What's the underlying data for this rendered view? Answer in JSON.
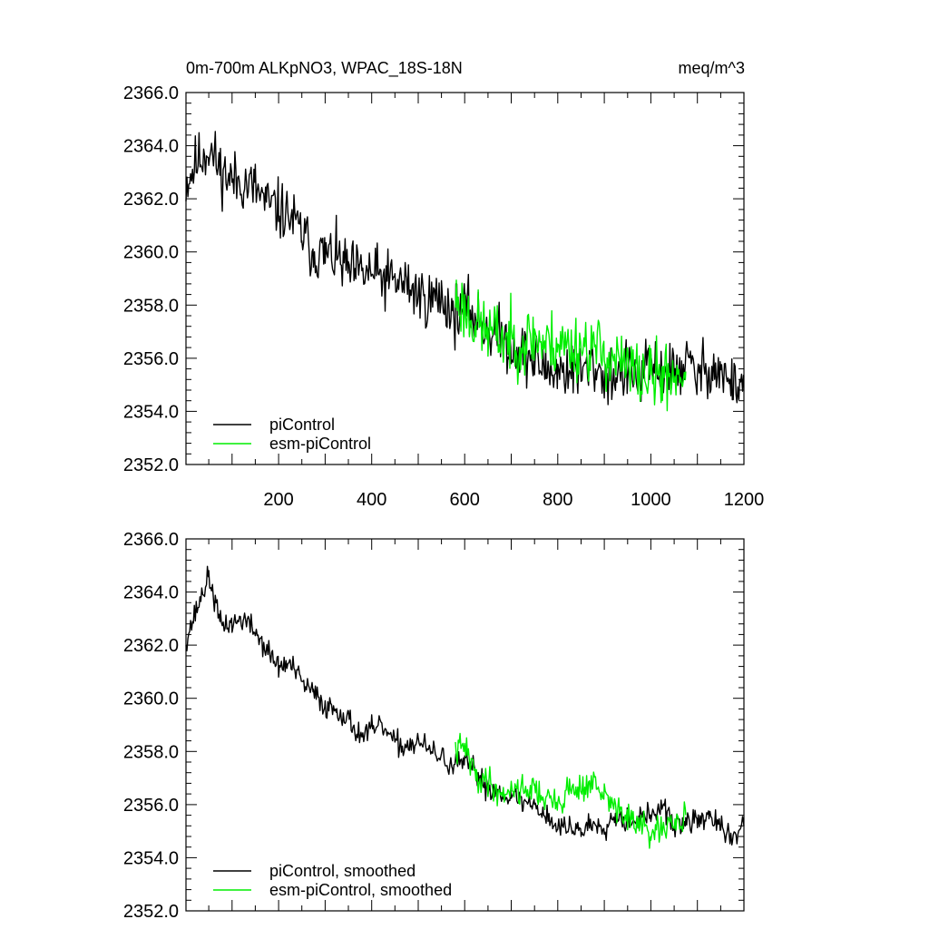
{
  "page": {
    "colors": {
      "background": "#ffffff",
      "axis": "#000000",
      "piControl": "#000000",
      "esm_piControl": "#00ee00"
    }
  },
  "chart_data": [
    {
      "type": "line",
      "title": "0m-700m ALKpNO3, WPAC_18S-18N",
      "units": "meq/m^3",
      "xlabel": "",
      "ylabel": "",
      "xlim": [
        1,
        1200
      ],
      "ylim": [
        2352.0,
        2366.0
      ],
      "yticks": [
        "2352.0",
        "2354.0",
        "2356.0",
        "2358.0",
        "2360.0",
        "2362.0",
        "2364.0",
        "2366.0"
      ],
      "xticks": [
        "200",
        "400",
        "600",
        "800",
        "1000",
        "1200"
      ],
      "show_xtick_labels": true,
      "legend": "bottom-left",
      "series": [
        {
          "name": "piControl",
          "color": "#000000",
          "x": [
            1,
            25,
            50,
            75,
            100,
            125,
            150,
            175,
            200,
            225,
            250,
            275,
            300,
            325,
            350,
            375,
            400,
            425,
            450,
            475,
            500,
            525,
            550,
            575,
            600,
            625,
            650,
            675,
            700,
            725,
            750,
            775,
            800,
            825,
            850,
            875,
            900,
            925,
            950,
            975,
            1000,
            1025,
            1050,
            1075,
            1100,
            1125,
            1150,
            1175,
            1200
          ],
          "values": [
            2362.6,
            2363.4,
            2363.9,
            2363.1,
            2362.7,
            2362.6,
            2362.4,
            2361.8,
            2361.6,
            2361.3,
            2360.7,
            2360.0,
            2359.9,
            2359.8,
            2359.3,
            2359.2,
            2359.2,
            2359.0,
            2358.9,
            2358.8,
            2358.4,
            2358.2,
            2358.3,
            2357.7,
            2357.9,
            2357.5,
            2357.1,
            2356.8,
            2356.5,
            2356.2,
            2355.9,
            2355.6,
            2355.5,
            2355.6,
            2355.4,
            2355.8,
            2355.3,
            2355.4,
            2355.5,
            2355.2,
            2355.7,
            2355.6,
            2355.4,
            2355.9,
            2355.3,
            2355.7,
            2355.5,
            2354.9,
            2355.3
          ],
          "noise": 1.1,
          "seed": 11
        },
        {
          "name": "esm-piControl",
          "color": "#00ee00",
          "x": [
            580,
            600,
            625,
            650,
            675,
            700,
            725,
            750,
            775,
            800,
            825,
            850,
            875,
            900,
            925,
            950,
            975,
            1000,
            1025,
            1050,
            1075
          ],
          "values": [
            2358.3,
            2357.8,
            2357.3,
            2357.0,
            2356.8,
            2356.7,
            2356.6,
            2356.8,
            2356.5,
            2356.6,
            2356.4,
            2356.5,
            2356.4,
            2356.2,
            2355.9,
            2355.6,
            2355.4,
            2355.3,
            2355.3,
            2355.4,
            2355.5
          ],
          "noise": 1.25,
          "seed": 23
        }
      ]
    },
    {
      "type": "line",
      "title": "",
      "xlabel": "",
      "ylabel": "",
      "xlim": [
        1,
        1200
      ],
      "ylim": [
        2352.0,
        2366.0
      ],
      "yticks": [
        "2352.0",
        "2354.0",
        "2356.0",
        "2358.0",
        "2360.0",
        "2362.0",
        "2364.0",
        "2366.0"
      ],
      "xticks": [
        "200",
        "400",
        "600",
        "800",
        "1000",
        "1200"
      ],
      "show_xtick_labels": false,
      "legend": "bottom-left",
      "series": [
        {
          "name": "piControl, smoothed",
          "color": "#000000",
          "x": [
            1,
            25,
            50,
            75,
            100,
            125,
            150,
            175,
            200,
            225,
            250,
            275,
            300,
            325,
            350,
            375,
            400,
            425,
            450,
            475,
            500,
            525,
            550,
            575,
            600,
            625,
            650,
            675,
            700,
            725,
            750,
            775,
            800,
            825,
            850,
            875,
            900,
            925,
            950,
            975,
            1000,
            1025,
            1050,
            1075,
            1100,
            1125,
            1150,
            1175,
            1200
          ],
          "values": [
            2362.2,
            2363.4,
            2364.6,
            2362.8,
            2362.8,
            2363.0,
            2362.5,
            2361.8,
            2361.2,
            2361.3,
            2360.6,
            2360.2,
            2359.7,
            2359.6,
            2359.2,
            2358.6,
            2358.8,
            2358.9,
            2358.3,
            2358.2,
            2358.4,
            2358.0,
            2357.8,
            2357.4,
            2357.6,
            2357.2,
            2356.6,
            2356.5,
            2356.3,
            2356.1,
            2356.0,
            2355.6,
            2355.1,
            2355.2,
            2355.0,
            2355.3,
            2355.2,
            2355.6,
            2355.4,
            2355.5,
            2355.6,
            2355.9,
            2355.2,
            2355.3,
            2355.4,
            2355.6,
            2355.1,
            2354.7,
            2355.2
          ],
          "noise": 0.45,
          "seed": 37
        },
        {
          "name": "esm-piControl, smoothed",
          "color": "#00ee00",
          "x": [
            580,
            600,
            625,
            650,
            675,
            700,
            725,
            750,
            775,
            800,
            825,
            850,
            875,
            900,
            925,
            950,
            975,
            1000,
            1025,
            1050,
            1075
          ],
          "values": [
            2358.0,
            2358.2,
            2357.0,
            2356.9,
            2356.4,
            2356.6,
            2356.6,
            2356.6,
            2356.2,
            2356.0,
            2356.6,
            2356.6,
            2356.8,
            2356.3,
            2355.9,
            2355.5,
            2355.2,
            2354.9,
            2355.0,
            2355.2,
            2355.6
          ],
          "noise": 0.55,
          "seed": 41
        }
      ]
    }
  ]
}
